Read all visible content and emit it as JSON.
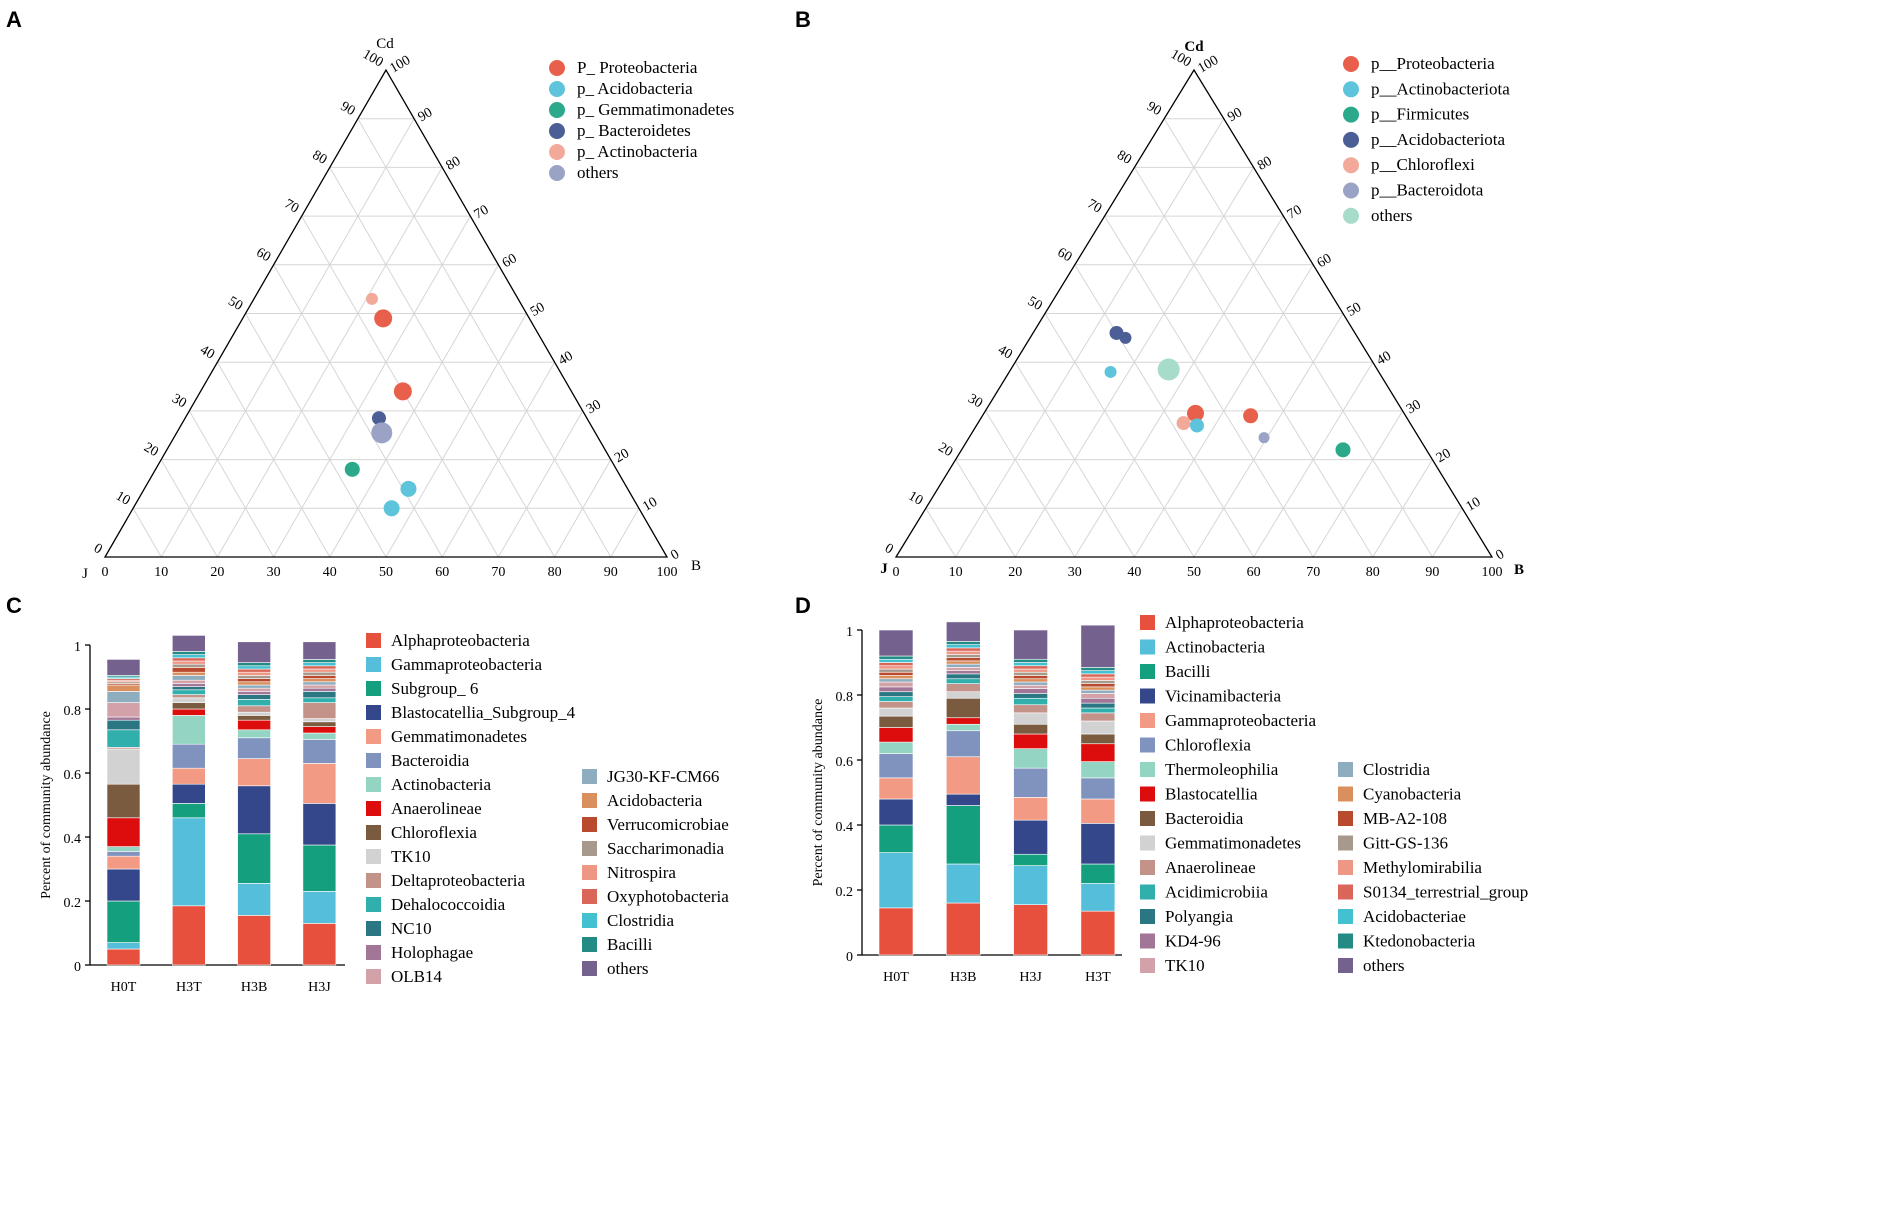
{
  "panels": {
    "A": "A",
    "B": "B",
    "C": "C",
    "D": "D"
  },
  "chart_data": [
    {
      "type": "scatter",
      "subtype": "ternary",
      "panel": "A",
      "vertices": {
        "top": "Cd",
        "left": "J",
        "right": "B"
      },
      "ticks": [
        "0",
        "10",
        "20",
        "30",
        "40",
        "50",
        "60",
        "70",
        "80",
        "90",
        "100"
      ],
      "legend": [
        {
          "name": "P_ Proteobacteria",
          "color": "#e8604c"
        },
        {
          "name": "p_ Acidobacteria",
          "color": "#5ec4dc"
        },
        {
          "name": "p_ Gemmatimonadetes",
          "color": "#2ba98a"
        },
        {
          "name": "p_ Bacteroidetes",
          "color": "#4c5e96"
        },
        {
          "name": "p_ Actinobacteria",
          "color": "#f2a999"
        },
        {
          "name": "others",
          "color": "#9aa3c5"
        }
      ],
      "points": [
        {
          "series": "p_ Actinobacteria",
          "cd": 53,
          "j": 26,
          "b": 21,
          "r": 6
        },
        {
          "series": "P_ Proteobacteria",
          "cd": 49,
          "j": 26,
          "b": 25,
          "r": 9
        },
        {
          "series": "P_ Proteobacteria",
          "cd": 34,
          "j": 30,
          "b": 36,
          "r": 9
        },
        {
          "series": "p_ Bacteroidetes",
          "cd": 28.5,
          "j": 37,
          "b": 34.5,
          "r": 7
        },
        {
          "series": "others",
          "cd": 25.5,
          "j": 38,
          "b": 36.5,
          "r": 10.5
        },
        {
          "series": "p_ Gemmatimonadetes",
          "cd": 18,
          "j": 47,
          "b": 35,
          "r": 7.5
        },
        {
          "series": "p_ Acidobacteria",
          "cd": 14,
          "j": 39,
          "b": 47,
          "r": 8
        },
        {
          "series": "p_ Acidobacteria",
          "cd": 10,
          "j": 44,
          "b": 46,
          "r": 8
        }
      ]
    },
    {
      "type": "scatter",
      "subtype": "ternary",
      "panel": "B",
      "vertices": {
        "top": "Cd",
        "left": "J",
        "right": "B"
      },
      "ticks": [
        "0",
        "10",
        "20",
        "30",
        "40",
        "50",
        "60",
        "70",
        "80",
        "90",
        "100"
      ],
      "legend": [
        {
          "name": "p__Proteobacteria",
          "color": "#e8604c"
        },
        {
          "name": "p__Actinobacteriota",
          "color": "#5ec4dc"
        },
        {
          "name": "p__Firmicutes",
          "color": "#2ba98a"
        },
        {
          "name": "p__Acidobacteriota",
          "color": "#4c5e96"
        },
        {
          "name": "p__Chloroflexi",
          "color": "#f2a999"
        },
        {
          "name": "p__Bacteroidota",
          "color": "#9aa3c5"
        },
        {
          "name": "others",
          "color": "#a6dcc9"
        }
      ],
      "points": [
        {
          "series": "p__Acidobacteriota",
          "cd": 46,
          "j": 40,
          "b": 14,
          "r": 7
        },
        {
          "series": "p__Acidobacteriota",
          "cd": 45,
          "j": 39,
          "b": 16,
          "r": 6
        },
        {
          "series": "p__Actinobacteriota",
          "cd": 38,
          "j": 45,
          "b": 17,
          "r": 6
        },
        {
          "series": "others",
          "cd": 38.5,
          "j": 35,
          "b": 26.5,
          "r": 11
        },
        {
          "series": "p__Proteobacteria",
          "cd": 29.5,
          "j": 35,
          "b": 35.5,
          "r": 8.5
        },
        {
          "series": "p__Proteobacteria",
          "cd": 29,
          "j": 26,
          "b": 45,
          "r": 7.5
        },
        {
          "series": "p__Chloroflexi",
          "cd": 27.5,
          "j": 38,
          "b": 34.5,
          "r": 7
        },
        {
          "series": "p__Actinobacteriota",
          "cd": 27,
          "j": 36,
          "b": 37,
          "r": 7
        },
        {
          "series": "p__Bacteroidota",
          "cd": 24.5,
          "j": 26,
          "b": 49.5,
          "r": 5.5
        },
        {
          "series": "p__Firmicutes",
          "cd": 22,
          "j": 14,
          "b": 64,
          "r": 7.5
        }
      ]
    },
    {
      "type": "bar",
      "stacked": true,
      "panel": "C",
      "categories": [
        "H0T",
        "H3T",
        "H3B",
        "H3J"
      ],
      "ylabel": "Percent of community abundance",
      "ylim": [
        0,
        1
      ],
      "yticks": [
        "0",
        "0.2",
        "0.4",
        "0.6",
        "0.8",
        "1"
      ],
      "series": [
        {
          "name": "Alphaproteobacteria",
          "color": "#e8503e",
          "values": [
            0.05,
            0.185,
            0.155,
            0.13
          ]
        },
        {
          "name": "Gammaproteobacteria",
          "color": "#55bedb",
          "values": [
            0.02,
            0.275,
            0.1,
            0.1
          ]
        },
        {
          "name": "Subgroup_ 6",
          "color": "#14a07e",
          "values": [
            0.13,
            0.045,
            0.155,
            0.145
          ]
        },
        {
          "name": "Blastocatellia_Subgroup_4",
          "color": "#33478a",
          "values": [
            0.1,
            0.06,
            0.15,
            0.13
          ]
        },
        {
          "name": "Gemmatimonadetes",
          "color": "#f29a84",
          "values": [
            0.04,
            0.05,
            0.085,
            0.125
          ]
        },
        {
          "name": "Bacteroidia",
          "color": "#8093bf",
          "values": [
            0.015,
            0.075,
            0.065,
            0.075
          ]
        },
        {
          "name": "Actinobacteria",
          "color": "#93d5c2",
          "values": [
            0.015,
            0.09,
            0.025,
            0.02
          ]
        },
        {
          "name": "Anaerolineae",
          "color": "#de0d0d",
          "values": [
            0.09,
            0.02,
            0.03,
            0.02
          ]
        },
        {
          "name": "Chloroflexia",
          "color": "#7b5b40",
          "values": [
            0.105,
            0.02,
            0.015,
            0.015
          ]
        },
        {
          "name": "TK10",
          "color": "#d2d2d2",
          "values": [
            0.11,
            0.015,
            0.01,
            0.01
          ]
        },
        {
          "name": "Deltaproteobacteria",
          "color": "#c39289",
          "values": [
            0.005,
            0.01,
            0.02,
            0.05
          ]
        },
        {
          "name": "Dehalococcoidia",
          "color": "#31afad",
          "values": [
            0.055,
            0.015,
            0.02,
            0.015
          ]
        },
        {
          "name": "NC10",
          "color": "#2a7683",
          "values": [
            0.03,
            0.01,
            0.015,
            0.02
          ]
        },
        {
          "name": "Holophagae",
          "color": "#a27696",
          "values": [
            0.01,
            0.01,
            0.01,
            0.01
          ]
        },
        {
          "name": "OLB14",
          "color": "#d3a2a8",
          "values": [
            0.045,
            0.01,
            0.01,
            0.01
          ]
        },
        {
          "name": "JG30-KF-CM66",
          "color": "#8eaec0",
          "values": [
            0.035,
            0.015,
            0.01,
            0.01
          ]
        },
        {
          "name": "Acidobacteria",
          "color": "#d98f5e",
          "values": [
            0.02,
            0.01,
            0.01,
            0.01
          ]
        },
        {
          "name": "Verrucomicrobiae",
          "color": "#b94a2e",
          "values": [
            0.005,
            0.015,
            0.01,
            0.01
          ]
        },
        {
          "name": "Saccharimonadia",
          "color": "#a8998d",
          "values": [
            0.005,
            0.01,
            0.01,
            0.01
          ]
        },
        {
          "name": "Nitrospira",
          "color": "#ee9785",
          "values": [
            0.005,
            0.01,
            0.01,
            0.01
          ]
        },
        {
          "name": "Oxyphotobacteria",
          "color": "#d96659",
          "values": [
            0.005,
            0.01,
            0.01,
            0.01
          ]
        },
        {
          "name": "Clostridia",
          "color": "#43c1d1",
          "values": [
            0.005,
            0.01,
            0.01,
            0.01
          ]
        },
        {
          "name": "Bacilli",
          "color": "#238b84",
          "values": [
            0.005,
            0.01,
            0.01,
            0.01
          ]
        },
        {
          "name": "others",
          "color": "#75618e",
          "values": [
            0.05,
            0.05,
            0.065,
            0.055
          ]
        }
      ],
      "legend_columns": [
        [
          "Alphaproteobacteria",
          "Gammaproteobacteria",
          "Subgroup_ 6",
          "Blastocatellia_Subgroup_4",
          "Gemmatimonadetes",
          "Bacteroidia",
          "Actinobacteria",
          "Anaerolineae",
          "Chloroflexia",
          "TK10",
          "Deltaproteobacteria",
          "Dehalococcoidia",
          "NC10",
          "Holophagae",
          "OLB14"
        ],
        [
          "JG30-KF-CM66",
          "Acidobacteria",
          "Verrucomicrobiae",
          "Saccharimonadia",
          "Nitrospira",
          "Oxyphotobacteria",
          "Clostridia",
          "Bacilli",
          "others"
        ]
      ]
    },
    {
      "type": "bar",
      "stacked": true,
      "panel": "D",
      "categories": [
        "H0T",
        "H3B",
        "H3J",
        "H3T"
      ],
      "ylabel": "Percent of community abundance",
      "ylim": [
        0,
        1
      ],
      "yticks": [
        "0",
        "0.2",
        "0.4",
        "0.6",
        "0.8",
        "1"
      ],
      "series": [
        {
          "name": "Alphaproteobacteria",
          "color": "#e8503e",
          "values": [
            0.145,
            0.16,
            0.155,
            0.135
          ]
        },
        {
          "name": "Actinobacteria",
          "color": "#55bedb",
          "values": [
            0.17,
            0.12,
            0.12,
            0.085
          ]
        },
        {
          "name": "Bacilli",
          "color": "#14a07e",
          "values": [
            0.085,
            0.18,
            0.035,
            0.06
          ]
        },
        {
          "name": "Vicinamibacteria",
          "color": "#33478a",
          "values": [
            0.08,
            0.035,
            0.105,
            0.125
          ]
        },
        {
          "name": "Gammaproteobacteria",
          "color": "#f29a84",
          "values": [
            0.065,
            0.115,
            0.07,
            0.075
          ]
        },
        {
          "name": "Chloroflexia",
          "color": "#8093bf",
          "values": [
            0.075,
            0.08,
            0.09,
            0.065
          ]
        },
        {
          "name": "Thermoleophilia",
          "color": "#93d5c2",
          "values": [
            0.035,
            0.02,
            0.06,
            0.05
          ]
        },
        {
          "name": "Blastocatellia",
          "color": "#de0d0d",
          "values": [
            0.045,
            0.02,
            0.045,
            0.055
          ]
        },
        {
          "name": "Bacteroidia",
          "color": "#7b5b40",
          "values": [
            0.035,
            0.06,
            0.03,
            0.03
          ]
        },
        {
          "name": "Gemmatimonadetes",
          "color": "#d2d2d2",
          "values": [
            0.025,
            0.02,
            0.035,
            0.04
          ]
        },
        {
          "name": "Anaerolineae",
          "color": "#c39289",
          "values": [
            0.02,
            0.025,
            0.025,
            0.025
          ]
        },
        {
          "name": "Acidimicrobiia",
          "color": "#31afad",
          "values": [
            0.015,
            0.015,
            0.02,
            0.015
          ]
        },
        {
          "name": "Polyangia",
          "color": "#2a7683",
          "values": [
            0.015,
            0.015,
            0.015,
            0.015
          ]
        },
        {
          "name": "KD4-96",
          "color": "#a27696",
          "values": [
            0.015,
            0.01,
            0.015,
            0.015
          ]
        },
        {
          "name": "TK10",
          "color": "#d3a2a8",
          "values": [
            0.015,
            0.01,
            0.01,
            0.015
          ]
        },
        {
          "name": "Clostridia",
          "color": "#8eaec0",
          "values": [
            0.01,
            0.01,
            0.01,
            0.01
          ]
        },
        {
          "name": "Cyanobacteria",
          "color": "#d98f5e",
          "values": [
            0.01,
            0.01,
            0.01,
            0.01
          ]
        },
        {
          "name": "MB-A2-108",
          "color": "#b94a2e",
          "values": [
            0.01,
            0.01,
            0.01,
            0.01
          ]
        },
        {
          "name": "Gitt-GS-136",
          "color": "#a8998d",
          "values": [
            0.01,
            0.01,
            0.01,
            0.01
          ]
        },
        {
          "name": "Methylomirabilia",
          "color": "#ee9785",
          "values": [
            0.01,
            0.01,
            0.01,
            0.01
          ]
        },
        {
          "name": "S0134_terrestrial_group",
          "color": "#d96659",
          "values": [
            0.01,
            0.01,
            0.01,
            0.01
          ]
        },
        {
          "name": "Acidobacteriae",
          "color": "#43c1d1",
          "values": [
            0.01,
            0.01,
            0.01,
            0.01
          ]
        },
        {
          "name": "Ktedonobacteria",
          "color": "#238b84",
          "values": [
            0.01,
            0.01,
            0.01,
            0.01
          ]
        },
        {
          "name": "others",
          "color": "#75618e",
          "values": [
            0.08,
            0.06,
            0.09,
            0.13
          ]
        }
      ],
      "legend_columns": [
        [
          "Alphaproteobacteria",
          "Actinobacteria",
          "Bacilli",
          "Vicinamibacteria",
          "Gammaproteobacteria",
          "Chloroflexia",
          "Thermoleophilia",
          "Blastocatellia",
          "Bacteroidia",
          "Gemmatimonadetes",
          "Anaerolineae",
          "Acidimicrobiia",
          "Polyangia",
          "KD4-96",
          "TK10"
        ],
        [
          "Clostridia",
          "Cyanobacteria",
          "MB-A2-108",
          "Gitt-GS-136",
          "Methylomirabilia",
          "S0134_terrestrial_group",
          "Acidobacteriae",
          "Ktedonobacteria",
          "others"
        ]
      ]
    }
  ]
}
